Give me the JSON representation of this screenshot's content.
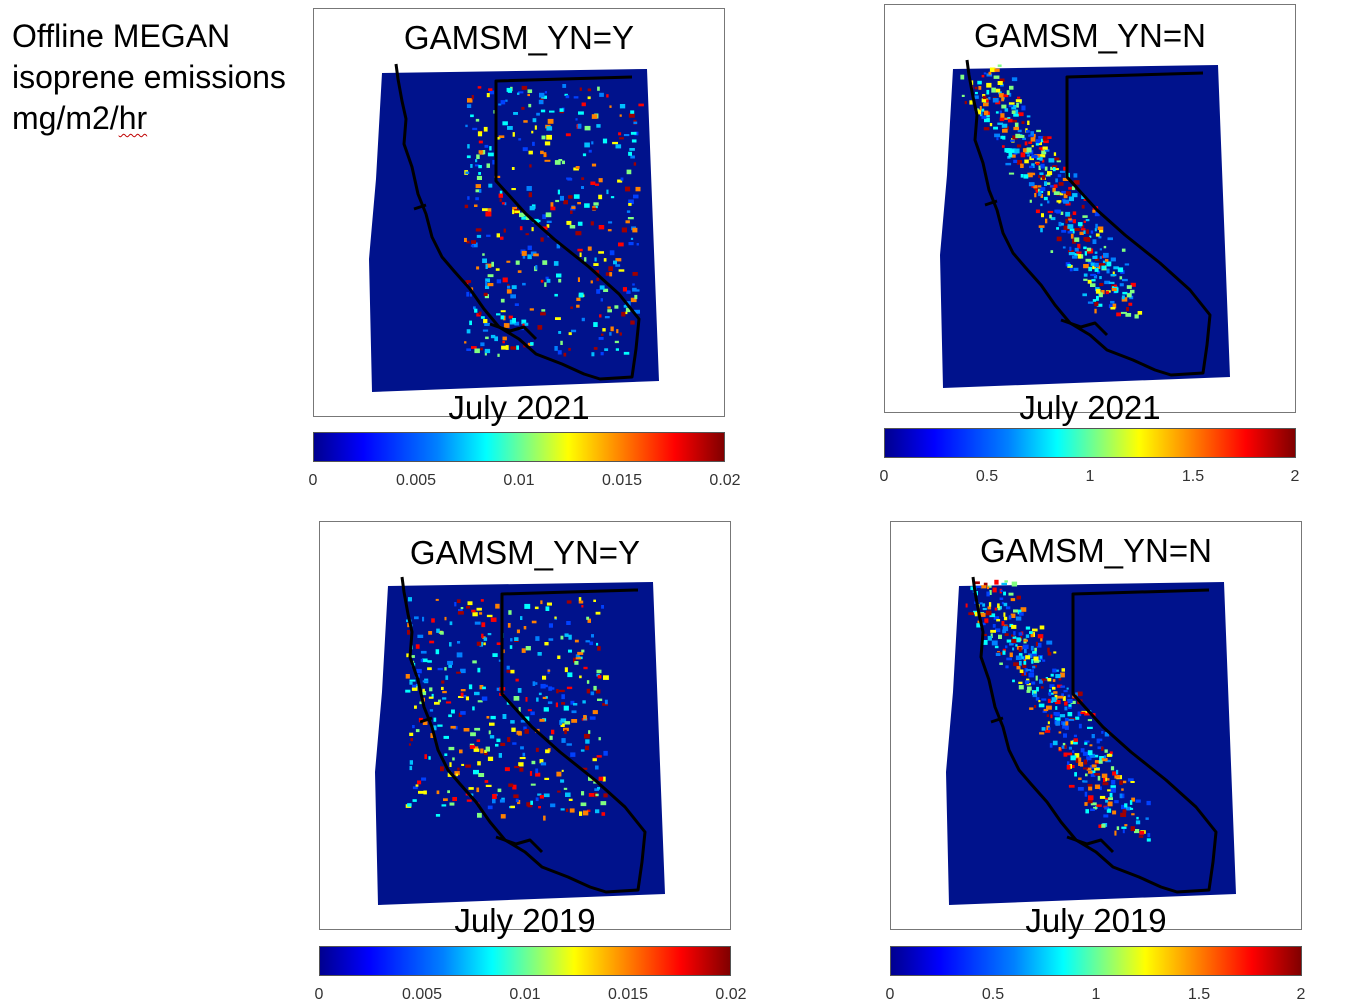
{
  "side_title": {
    "line1": "Offline MEGAN",
    "line2": "isoprene emissions",
    "unit_prefix": "mg/m2/",
    "unit_suffix": "hr"
  },
  "panels": [
    {
      "title": "GAMSM_YN=Y",
      "date": "July 2021",
      "colorbar_ticks": [
        "0",
        "0.005",
        "0.01",
        "0.015",
        "0.02"
      ]
    },
    {
      "title": "GAMSM_YN=N",
      "date": "July 2021",
      "colorbar_ticks": [
        "0",
        "0.5",
        "1",
        "1.5",
        "2"
      ]
    },
    {
      "title": "GAMSM_YN=Y",
      "date": "July 2019",
      "colorbar_ticks": [
        "0",
        "0.005",
        "0.01",
        "0.015",
        "0.02"
      ]
    },
    {
      "title": "GAMSM_YN=N",
      "date": "July 2019",
      "colorbar_ticks": [
        "0",
        "0.5",
        "1",
        "1.5",
        "2"
      ]
    }
  ],
  "colors": {
    "map_background": "#00128c",
    "border": "#000000",
    "colormap": "jet"
  }
}
